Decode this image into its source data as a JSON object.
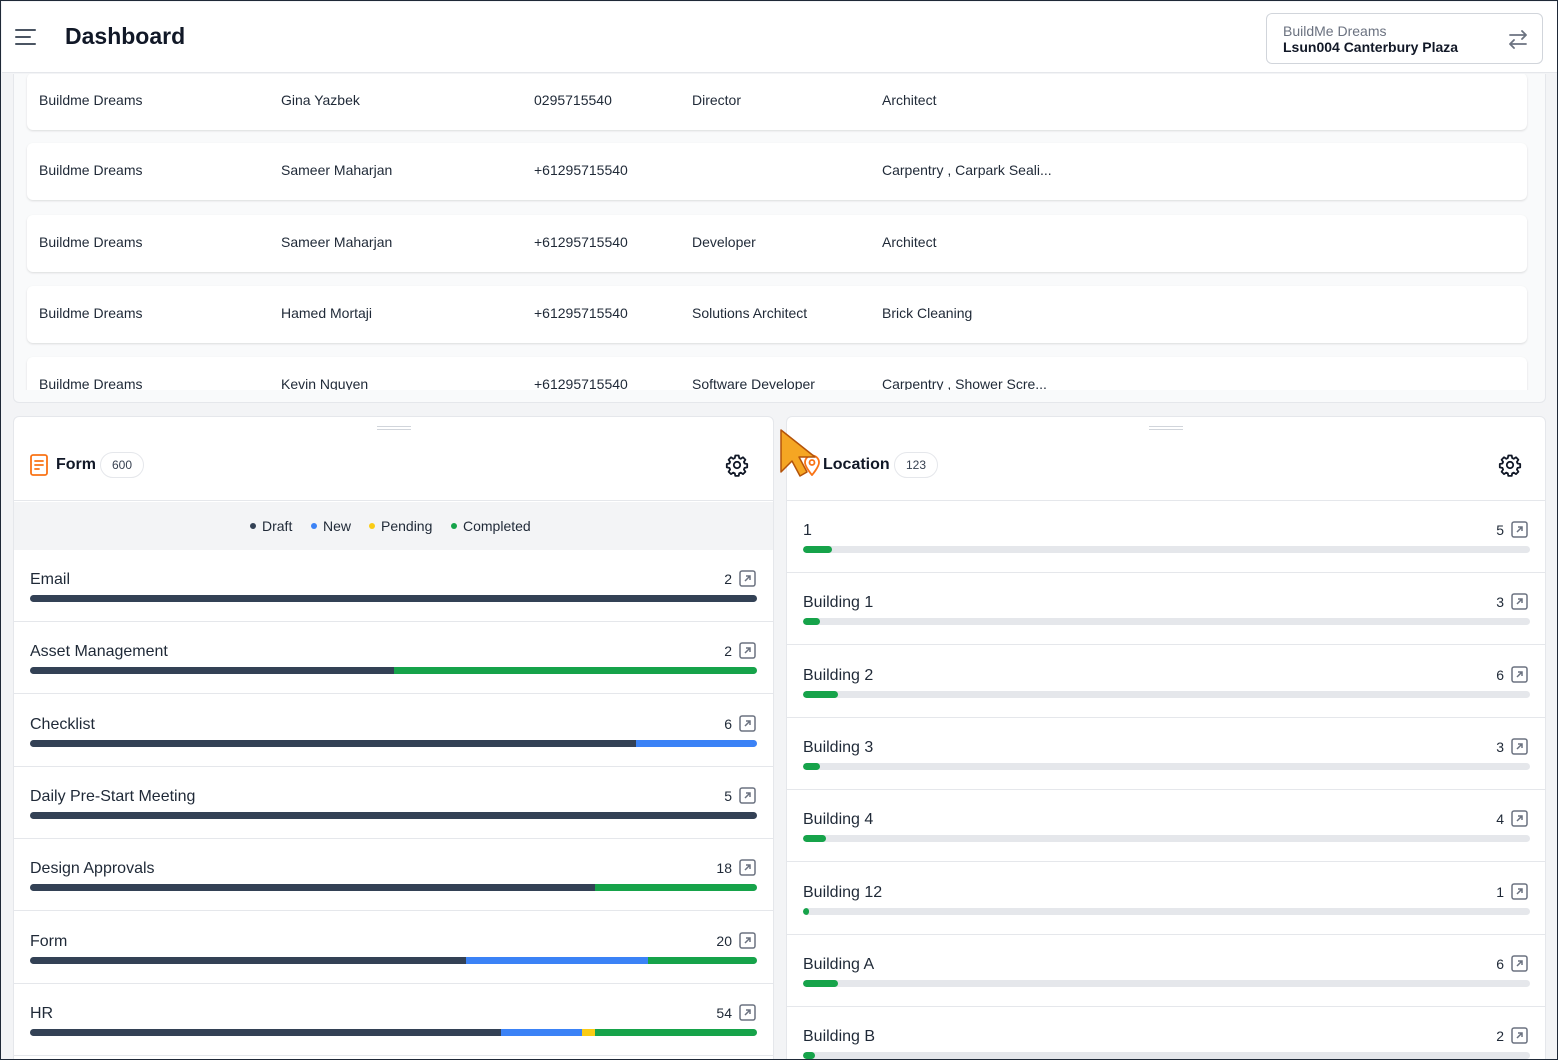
{
  "header": {
    "title": "Dashboard",
    "project_company": "BuildMe Dreams",
    "project_site": "Lsun004 Canterbury Plaza"
  },
  "table": {
    "rows": [
      {
        "company": "Buildme Dreams",
        "name": "Gina Yazbek",
        "phone": "0295715540",
        "role": "Director",
        "trade": "Architect"
      },
      {
        "company": "Buildme Dreams",
        "name": "Sameer Maharjan",
        "phone": "+61295715540",
        "role": "",
        "trade": "Carpentry , Carpark Seali..."
      },
      {
        "company": "Buildme Dreams",
        "name": "Sameer Maharjan",
        "phone": "+61295715540",
        "role": "Developer",
        "trade": "Architect"
      },
      {
        "company": "Buildme Dreams",
        "name": "Hamed Mortaji",
        "phone": "+61295715540",
        "role": "Solutions Architect",
        "trade": "Brick Cleaning"
      },
      {
        "company": "Buildme Dreams",
        "name": "Kevin Nguyen",
        "phone": "+61295715540",
        "role": "Software Developer",
        "trade": "Carpentry , Shower Scre..."
      }
    ]
  },
  "form_panel": {
    "title": "Form",
    "count": "600",
    "legend": [
      {
        "label": "Draft",
        "color": "#334155"
      },
      {
        "label": "New",
        "color": "#3b82f6"
      },
      {
        "label": "Pending",
        "color": "#facc15"
      },
      {
        "label": "Completed",
        "color": "#16a34a"
      }
    ],
    "rows": [
      {
        "label": "Email",
        "count": "2",
        "segments": [
          {
            "status": "Draft",
            "fraction": 1.0
          }
        ]
      },
      {
        "label": "Asset Management",
        "count": "2",
        "segments": [
          {
            "status": "Draft",
            "fraction": 0.5
          },
          {
            "status": "Completed",
            "fraction": 0.5
          }
        ]
      },
      {
        "label": "Checklist",
        "count": "6",
        "segments": [
          {
            "status": "Draft",
            "fraction": 0.8333
          },
          {
            "status": "New",
            "fraction": 0.1667
          }
        ]
      },
      {
        "label": "Daily Pre-Start Meeting",
        "count": "5",
        "segments": [
          {
            "status": "Draft",
            "fraction": 1.0
          }
        ]
      },
      {
        "label": "Design Approvals",
        "count": "18",
        "segments": [
          {
            "status": "Draft",
            "fraction": 0.7778
          },
          {
            "status": "Completed",
            "fraction": 0.2222
          }
        ]
      },
      {
        "label": "Form",
        "count": "20",
        "segments": [
          {
            "status": "Draft",
            "fraction": 0.6
          },
          {
            "status": "New",
            "fraction": 0.25
          },
          {
            "status": "Completed",
            "fraction": 0.15
          }
        ]
      },
      {
        "label": "HR",
        "count": "54",
        "segments": [
          {
            "status": "Draft",
            "fraction": 0.6481
          },
          {
            "status": "New",
            "fraction": 0.1111
          },
          {
            "status": "Pending",
            "fraction": 0.0185
          },
          {
            "status": "Completed",
            "fraction": 0.2222
          }
        ]
      }
    ]
  },
  "location_panel": {
    "title": "Location",
    "count": "123",
    "bar_color": "#16a34a",
    "rows": [
      {
        "label": "1",
        "count": "5",
        "fraction": 0.04
      },
      {
        "label": "Building 1",
        "count": "3",
        "fraction": 0.024
      },
      {
        "label": "Building 2",
        "count": "6",
        "fraction": 0.048
      },
      {
        "label": "Building 3",
        "count": "3",
        "fraction": 0.024
      },
      {
        "label": "Building 4",
        "count": "4",
        "fraction": 0.032
      },
      {
        "label": "Building 12",
        "count": "1",
        "fraction": 0.008
      },
      {
        "label": "Building A",
        "count": "6",
        "fraction": 0.048
      },
      {
        "label": "Building B",
        "count": "2",
        "fraction": 0.016
      }
    ]
  }
}
